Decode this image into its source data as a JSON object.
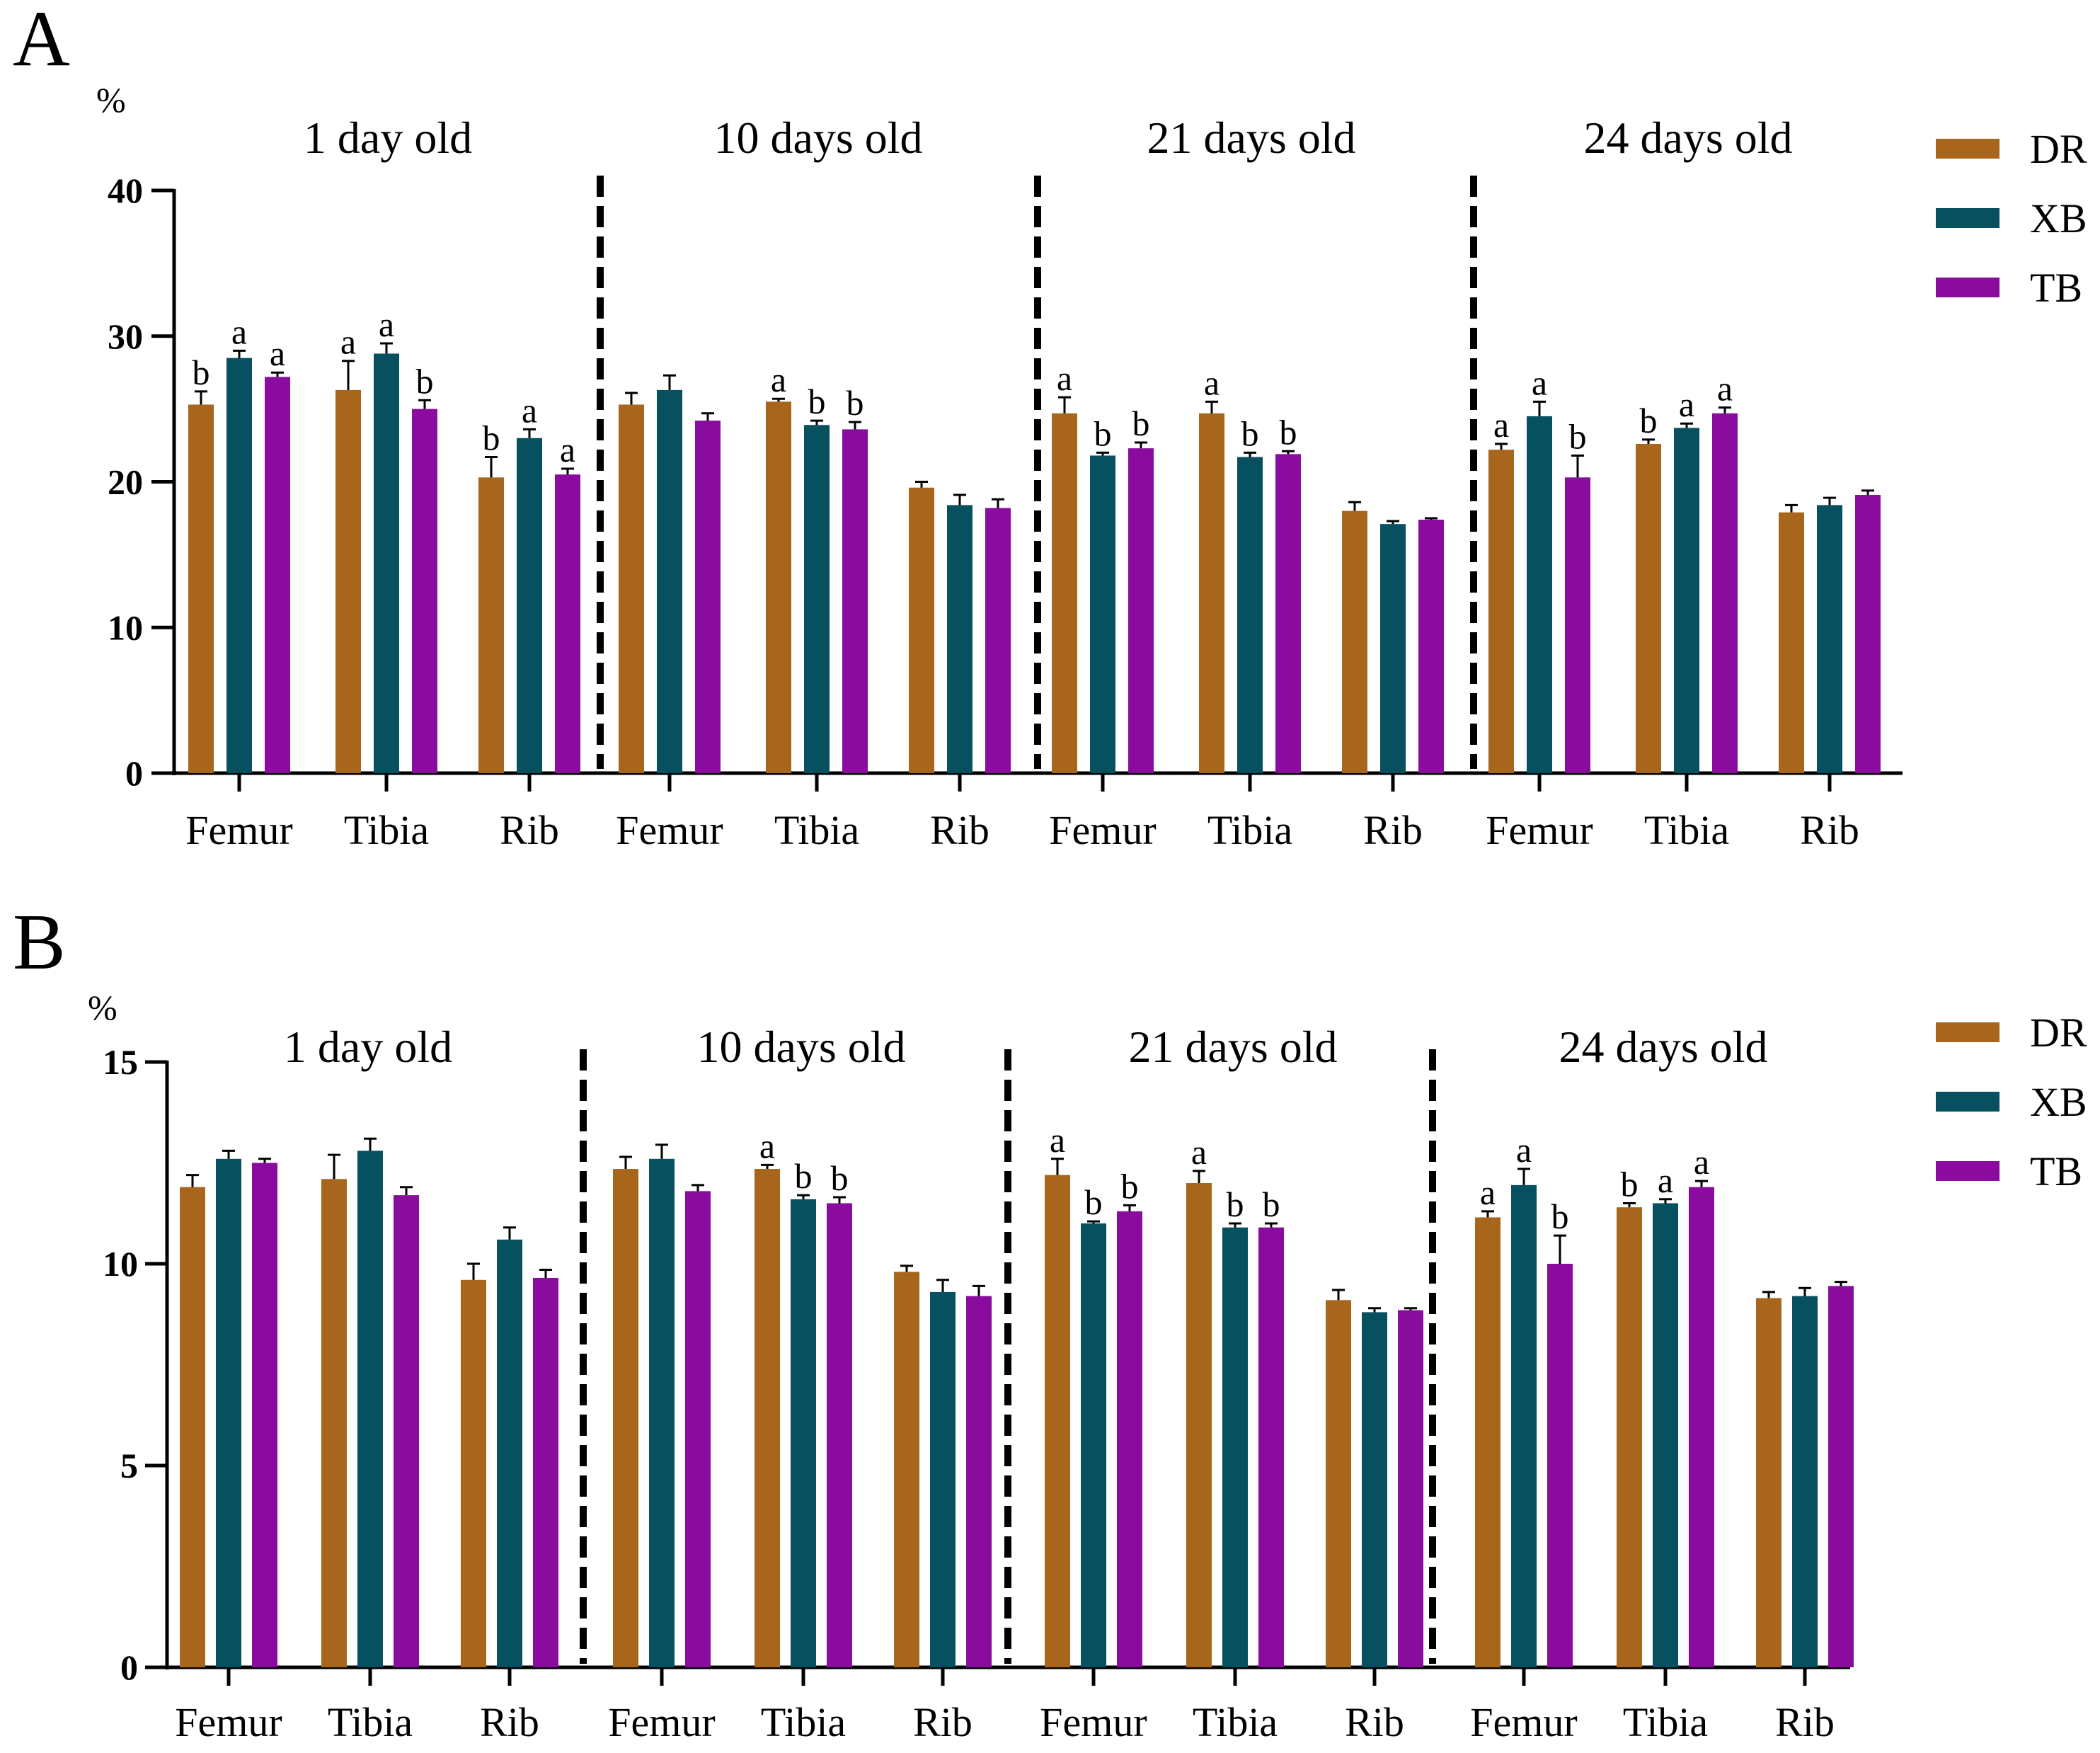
{
  "chart_data": [
    {
      "type": "bar",
      "panel_label": "A",
      "unit_label": "%",
      "ylim": [
        0,
        40
      ],
      "yticks": [
        "0",
        "10",
        "20",
        "30",
        "40"
      ],
      "groups": [
        {
          "title": "1 day old",
          "categories": [
            {
              "label": "Femur",
              "values": [
                25.3,
                28.5,
                27.2
              ],
              "errors": [
                0.9,
                0.5,
                0.3
              ],
              "letters": [
                "b",
                "a",
                "a"
              ]
            },
            {
              "label": "Tibia",
              "values": [
                26.3,
                28.8,
                25.0
              ],
              "errors": [
                2.0,
                0.7,
                0.6
              ],
              "letters": [
                "a",
                "a",
                "b"
              ]
            },
            {
              "label": "Rib",
              "values": [
                20.3,
                23.0,
                20.5
              ],
              "errors": [
                1.4,
                0.6,
                0.4
              ],
              "letters": [
                "b",
                "a",
                "a"
              ]
            }
          ]
        },
        {
          "title": "10  days old",
          "categories": [
            {
              "label": "Femur",
              "values": [
                25.3,
                26.3,
                24.2
              ],
              "errors": [
                0.8,
                1.0,
                0.5
              ],
              "letters": [
                "",
                "",
                ""
              ]
            },
            {
              "label": "Tibia",
              "values": [
                25.5,
                23.9,
                23.6
              ],
              "errors": [
                0.2,
                0.3,
                0.5
              ],
              "letters": [
                "a",
                "b",
                "b"
              ]
            },
            {
              "label": "Rib",
              "values": [
                19.6,
                18.4,
                18.2
              ],
              "errors": [
                0.4,
                0.7,
                0.6
              ],
              "letters": [
                "",
                "",
                ""
              ]
            }
          ]
        },
        {
          "title": "21  days old",
          "categories": [
            {
              "label": "Femur",
              "values": [
                24.7,
                21.8,
                22.3
              ],
              "errors": [
                1.1,
                0.2,
                0.4
              ],
              "letters": [
                "a",
                "b",
                "b"
              ]
            },
            {
              "label": "Tibia",
              "values": [
                24.7,
                21.7,
                21.9
              ],
              "errors": [
                0.8,
                0.3,
                0.2
              ],
              "letters": [
                "a",
                "b",
                "b"
              ]
            },
            {
              "label": "Rib",
              "values": [
                18.0,
                17.1,
                17.4
              ],
              "errors": [
                0.6,
                0.2,
                0.1
              ],
              "letters": [
                "",
                "",
                ""
              ]
            }
          ]
        },
        {
          "title": "24  days old",
          "categories": [
            {
              "label": "Femur",
              "values": [
                22.2,
                24.5,
                20.3
              ],
              "errors": [
                0.4,
                1.0,
                1.5
              ],
              "letters": [
                "a",
                "a",
                "b"
              ]
            },
            {
              "label": "Tibia",
              "values": [
                22.6,
                23.7,
                24.7
              ],
              "errors": [
                0.3,
                0.3,
                0.4
              ],
              "letters": [
                "b",
                "a",
                "a"
              ]
            },
            {
              "label": "Rib",
              "values": [
                17.9,
                18.4,
                19.1
              ],
              "errors": [
                0.5,
                0.5,
                0.3
              ],
              "letters": [
                "",
                "",
                ""
              ]
            }
          ]
        }
      ]
    },
    {
      "type": "bar",
      "panel_label": "B",
      "unit_label": "%",
      "ylim": [
        0,
        15
      ],
      "yticks": [
        "0",
        "5",
        "10",
        "15"
      ],
      "groups": [
        {
          "title": "1 day old",
          "categories": [
            {
              "label": "Femur",
              "values": [
                11.9,
                12.6,
                12.5
              ],
              "errors": [
                0.3,
                0.2,
                0.1
              ],
              "letters": [
                "",
                "",
                ""
              ]
            },
            {
              "label": "Tibia",
              "values": [
                12.1,
                12.8,
                11.7
              ],
              "errors": [
                0.6,
                0.3,
                0.2
              ],
              "letters": [
                "",
                "",
                ""
              ]
            },
            {
              "label": "Rib",
              "values": [
                9.6,
                10.6,
                9.65
              ],
              "errors": [
                0.4,
                0.3,
                0.2
              ],
              "letters": [
                "",
                "",
                ""
              ]
            }
          ]
        },
        {
          "title": "10  days old",
          "categories": [
            {
              "label": "Femur",
              "values": [
                12.35,
                12.6,
                11.8
              ],
              "errors": [
                0.3,
                0.35,
                0.15
              ],
              "letters": [
                "",
                "",
                ""
              ]
            },
            {
              "label": "Tibia",
              "values": [
                12.35,
                11.6,
                11.5
              ],
              "errors": [
                0.1,
                0.1,
                0.15
              ],
              "letters": [
                "a",
                "b",
                "b"
              ]
            },
            {
              "label": "Rib",
              "values": [
                9.8,
                9.3,
                9.2
              ],
              "errors": [
                0.15,
                0.3,
                0.25
              ],
              "letters": [
                "",
                "",
                ""
              ]
            }
          ]
        },
        {
          "title": "21  days old",
          "categories": [
            {
              "label": "Femur",
              "values": [
                12.2,
                11.0,
                11.3
              ],
              "errors": [
                0.4,
                0.05,
                0.15
              ],
              "letters": [
                "a",
                "b",
                "b"
              ]
            },
            {
              "label": "Tibia",
              "values": [
                12.0,
                10.9,
                10.9
              ],
              "errors": [
                0.3,
                0.1,
                0.1
              ],
              "letters": [
                "a",
                "b",
                "b"
              ]
            },
            {
              "label": "Rib",
              "values": [
                9.1,
                8.8,
                8.85
              ],
              "errors": [
                0.25,
                0.1,
                0.05
              ],
              "letters": [
                "",
                "",
                ""
              ]
            }
          ]
        },
        {
          "title": "24  days old",
          "categories": [
            {
              "label": "Femur",
              "values": [
                11.15,
                11.95,
                10.0
              ],
              "errors": [
                0.15,
                0.4,
                0.7
              ],
              "letters": [
                "a",
                "a",
                "b"
              ]
            },
            {
              "label": "Tibia",
              "values": [
                11.4,
                11.5,
                11.9
              ],
              "errors": [
                0.1,
                0.1,
                0.15
              ],
              "letters": [
                "b",
                "a",
                "a"
              ]
            },
            {
              "label": "Rib",
              "values": [
                9.15,
                9.2,
                9.45
              ],
              "errors": [
                0.15,
                0.2,
                0.1
              ],
              "letters": [
                "",
                "",
                ""
              ]
            }
          ]
        }
      ]
    }
  ],
  "legend": [
    {
      "name": "DR",
      "color": "#A8661C"
    },
    {
      "name": "XB",
      "color": "#07505F"
    },
    {
      "name": "TB",
      "color": "#8A0C9E"
    }
  ]
}
